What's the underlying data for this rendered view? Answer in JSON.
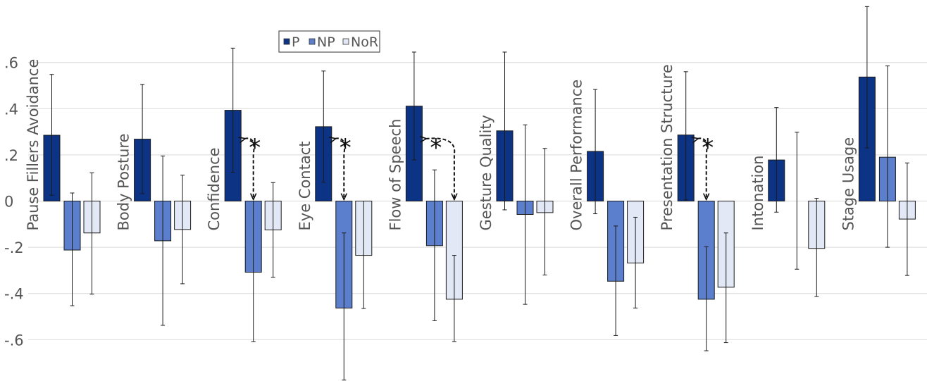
{
  "chart_data": {
    "type": "bar",
    "categories": [
      "Pause Fillers Avoidance",
      "Body Posture",
      "Confidence",
      "Eye Contact",
      "Flow of Speech",
      "Gesture Quality",
      "Overall Performance",
      "Presentation Structure",
      "Intonation",
      "Stage Usage"
    ],
    "series": [
      {
        "name": "P",
        "color": "#0d3384",
        "values": [
          0.285,
          0.268,
          0.393,
          0.322,
          0.411,
          0.304,
          0.215,
          0.286,
          0.178,
          0.537
        ],
        "err_low": [
          0.025,
          0.032,
          0.125,
          0.082,
          0.178,
          -0.038,
          -0.055,
          0.005,
          -0.048,
          0.23
        ],
        "err_high": [
          0.548,
          0.505,
          0.662,
          0.563,
          0.645,
          0.645,
          0.483,
          0.56,
          0.405,
          0.842
        ]
      },
      {
        "name": "NP",
        "color": "#5b7fcc",
        "values": [
          -0.212,
          -0.172,
          -0.308,
          -0.463,
          -0.193,
          -0.058,
          -0.347,
          -0.425,
          0.0,
          0.19
        ],
        "err_low": [
          -0.453,
          -0.538,
          -0.608,
          -0.775,
          -0.518,
          -0.447,
          -0.582,
          -0.648,
          -0.295,
          -0.2
        ],
        "err_high": [
          0.035,
          0.195,
          0.0,
          -0.138,
          0.135,
          0.33,
          -0.108,
          -0.198,
          0.298,
          0.585
        ]
      },
      {
        "name": "NoR",
        "color": "#e2e8f5",
        "values": [
          -0.138,
          -0.123,
          -0.125,
          -0.235,
          -0.425,
          -0.05,
          -0.268,
          -0.373,
          -0.205,
          -0.078
        ],
        "err_low": [
          -0.403,
          -0.358,
          -0.33,
          -0.465,
          -0.608,
          -0.32,
          -0.463,
          -0.613,
          -0.413,
          -0.322
        ],
        "err_high": [
          0.122,
          0.112,
          0.08,
          0.0,
          -0.235,
          0.228,
          -0.07,
          -0.138,
          0.012,
          0.165
        ]
      }
    ],
    "ylim": [
      -0.78,
      0.85
    ],
    "yticks": [
      0.6,
      0.4,
      0.2,
      0,
      -0.2,
      -0.4,
      -0.6
    ],
    "ytick_labels": [
      ".6",
      ".4",
      ".2",
      "0",
      "-.2",
      "-.4",
      "-.6"
    ],
    "grid": true,
    "legend": {
      "position": "top-center",
      "entries": [
        "P",
        "NP",
        "NoR"
      ]
    },
    "annotations": [
      {
        "category": "Confidence",
        "from": "P",
        "to": "NP",
        "text": "*"
      },
      {
        "category": "Eye Contact",
        "from": "P",
        "to": "NP",
        "text": "*"
      },
      {
        "category": "Flow of Speech",
        "from": "P",
        "to": "NoR",
        "text": "*"
      },
      {
        "category": "Presentation Structure",
        "from": "P",
        "to": "NP",
        "text": "*"
      }
    ],
    "title": "",
    "xlabel": "",
    "ylabel": ""
  }
}
